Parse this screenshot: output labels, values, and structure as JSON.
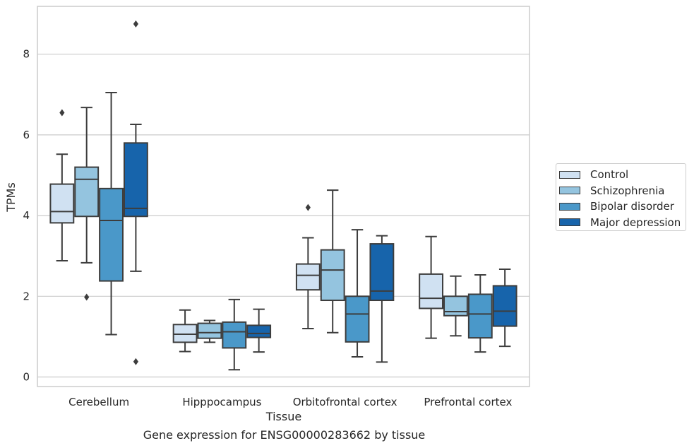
{
  "chart_data": {
    "type": "boxplot",
    "xlabel": "Tissue",
    "ylabel": "TPMs",
    "ylim": [
      -0.25,
      9.2
    ],
    "yticks": [
      0,
      2,
      4,
      6,
      8
    ],
    "grid": "horizontal",
    "legend_position": "right",
    "categories": [
      "Cerebellum",
      "Hipppocampus",
      "Orbitofrontal cortex",
      "Prefrontal cortex"
    ],
    "series": [
      {
        "name": "Control",
        "color": "#d0e1f2",
        "boxes": [
          {
            "whislo": 2.88,
            "q1": 3.82,
            "med": 4.1,
            "q3": 4.78,
            "whishi": 5.52,
            "fliers": [
              6.55
            ]
          },
          {
            "whislo": 0.63,
            "q1": 0.86,
            "med": 1.06,
            "q3": 1.3,
            "whishi": 1.66,
            "fliers": []
          },
          {
            "whislo": 1.2,
            "q1": 2.16,
            "med": 2.52,
            "q3": 2.8,
            "whishi": 3.45,
            "fliers": [
              4.2
            ]
          },
          {
            "whislo": 0.96,
            "q1": 1.7,
            "med": 1.95,
            "q3": 2.55,
            "whishi": 3.48,
            "fliers": []
          }
        ]
      },
      {
        "name": "Schizophrenia",
        "color": "#94c4df",
        "boxes": [
          {
            "whislo": 2.83,
            "q1": 3.98,
            "med": 4.9,
            "q3": 5.2,
            "whishi": 6.68,
            "fliers": [
              1.98
            ]
          },
          {
            "whislo": 0.86,
            "q1": 0.96,
            "med": 1.1,
            "q3": 1.33,
            "whishi": 1.4,
            "fliers": []
          },
          {
            "whislo": 1.1,
            "q1": 1.9,
            "med": 2.65,
            "q3": 3.15,
            "whishi": 4.63,
            "fliers": []
          },
          {
            "whislo": 1.02,
            "q1": 1.52,
            "med": 1.62,
            "q3": 2.0,
            "whishi": 2.5,
            "fliers": []
          }
        ]
      },
      {
        "name": "Bipolar disorder",
        "color": "#4a98c9",
        "boxes": [
          {
            "whislo": 1.05,
            "q1": 2.38,
            "med": 3.88,
            "q3": 4.67,
            "whishi": 7.05,
            "fliers": []
          },
          {
            "whislo": 0.18,
            "q1": 0.72,
            "med": 1.12,
            "q3": 1.36,
            "whishi": 1.92,
            "fliers": []
          },
          {
            "whislo": 0.5,
            "q1": 0.87,
            "med": 1.56,
            "q3": 2.0,
            "whishi": 3.65,
            "fliers": []
          },
          {
            "whislo": 0.62,
            "q1": 0.97,
            "med": 1.56,
            "q3": 2.05,
            "whishi": 2.53,
            "fliers": []
          }
        ]
      },
      {
        "name": "Major depression",
        "color": "#1764ab",
        "boxes": [
          {
            "whislo": 2.62,
            "q1": 3.98,
            "med": 4.18,
            "q3": 5.8,
            "whishi": 6.26,
            "fliers": [
              8.75,
              0.38
            ]
          },
          {
            "whislo": 0.62,
            "q1": 0.98,
            "med": 1.08,
            "q3": 1.28,
            "whishi": 1.68,
            "fliers": []
          },
          {
            "whislo": 0.37,
            "q1": 1.9,
            "med": 2.13,
            "q3": 3.3,
            "whishi": 3.5,
            "fliers": []
          },
          {
            "whislo": 0.76,
            "q1": 1.26,
            "med": 1.63,
            "q3": 2.26,
            "whishi": 2.67,
            "fliers": []
          }
        ]
      }
    ]
  },
  "caption": "Gene expression for ENSG00000283662 by tissue"
}
